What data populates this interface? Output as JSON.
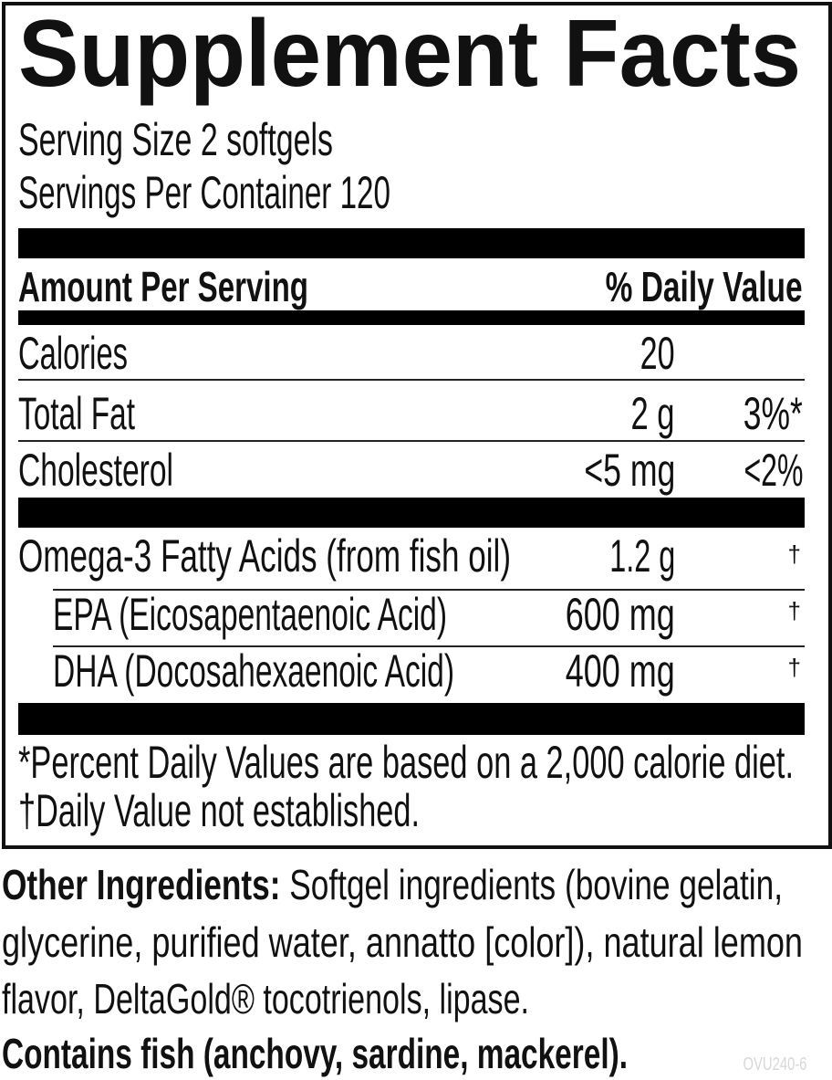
{
  "title": "Supplement Facts",
  "serving_size": "Serving Size 2 softgels",
  "servings_per_container": "Servings Per Container 120",
  "header": {
    "amount": "Amount Per Serving",
    "daily_value": "% Daily Value"
  },
  "rows": [
    {
      "name": "Calories",
      "amount": "20",
      "dv": ""
    },
    {
      "name": "Total Fat",
      "amount": "2 g",
      "dv": "3%*"
    },
    {
      "name": "Cholesterol",
      "amount": "<5 mg",
      "dv": "<2%"
    },
    {
      "name": "Omega-3 Fatty Acids (from fish oil)",
      "amount": "1.2 g",
      "dv": "†"
    },
    {
      "name": "EPA (Eicosapentaenoic Acid)",
      "amount": "600 mg",
      "dv": "†"
    },
    {
      "name": "DHA (Docosahexaenoic Acid)",
      "amount": "400 mg",
      "dv": "†"
    }
  ],
  "footnotes": [
    "*Percent Daily Values are based on a 2,000 calorie diet.",
    "†Daily Value not established."
  ],
  "other_ingredients": {
    "label": "Other Ingredients:",
    "lines": [
      "Softgel ingredients (bovine gelatin,",
      "glycerine, purified water, annatto [color]), natural lemon",
      "flavor, DeltaGold® tocotrienols, lipase."
    ]
  },
  "allergen": "Contains fish (anchovy, sardine, mackerel).",
  "product_code": "OVU240-6"
}
